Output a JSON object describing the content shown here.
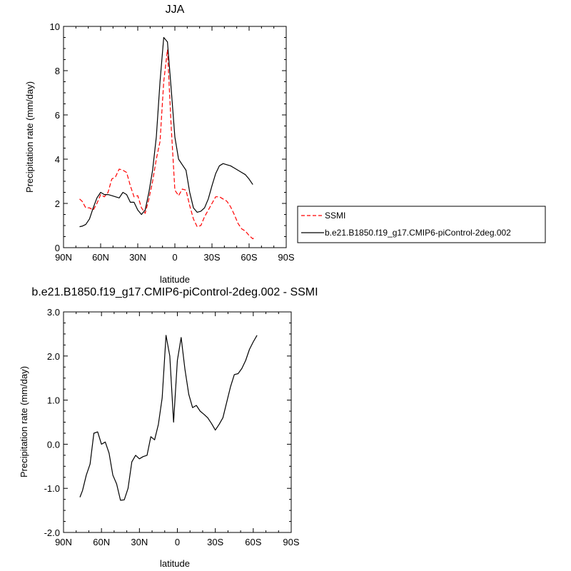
{
  "chart_data": [
    {
      "type": "line",
      "title": "JJA",
      "xlabel": "latitude",
      "ylabel": "Precipitation rate (mm/day)",
      "xlim": [
        90,
        -90
      ],
      "ylim": [
        0,
        10
      ],
      "x_ticks": [
        90,
        60,
        30,
        0,
        -30,
        -60,
        -90
      ],
      "x_tick_labels": [
        "90N",
        "60N",
        "30N",
        "0",
        "30S",
        "60S",
        "90S"
      ],
      "y_ticks": [
        0,
        2,
        4,
        6,
        8,
        10
      ],
      "y_tick_labels": [
        "0",
        "2",
        "4",
        "6",
        "8",
        "10"
      ],
      "legend_position": "right",
      "series": [
        {
          "name": "SSMI",
          "color": "#ff0000",
          "dash": "dashed",
          "x": [
            77,
            75,
            72,
            69,
            66,
            63,
            60,
            57,
            54,
            51,
            48,
            45,
            42,
            39,
            36,
            33,
            30,
            27,
            24,
            21,
            18,
            15,
            12,
            9,
            6,
            3,
            0,
            -3,
            -6,
            -9,
            -12,
            -15,
            -18,
            -21,
            -24,
            -27,
            -30,
            -33,
            -36,
            -39,
            -42,
            -45,
            -48,
            -51,
            -54,
            -57,
            -60,
            -63,
            -65
          ],
          "y": [
            2.2,
            2.1,
            1.8,
            1.8,
            1.7,
            2.0,
            2.4,
            2.3,
            2.5,
            3.1,
            3.2,
            3.55,
            3.5,
            3.4,
            2.8,
            2.3,
            2.35,
            1.8,
            1.55,
            2.2,
            3.0,
            4.0,
            4.8,
            7.5,
            8.95,
            5.5,
            2.6,
            2.35,
            2.65,
            2.6,
            1.9,
            1.3,
            0.95,
            1.0,
            1.4,
            1.7,
            2.0,
            2.3,
            2.3,
            2.2,
            2.1,
            1.85,
            1.5,
            1.1,
            0.85,
            0.75,
            0.55,
            0.4,
            0.5
          ]
        },
        {
          "name": "b.e21.B1850.f19_g17.CMIP6-piControl-2deg.002",
          "color": "#000000",
          "dash": "solid",
          "x": [
            77,
            75,
            72,
            69,
            66,
            63,
            60,
            57,
            54,
            51,
            48,
            45,
            42,
            39,
            36,
            33,
            30,
            27,
            24,
            21,
            18,
            15,
            12,
            9,
            6,
            3,
            0,
            -3,
            -6,
            -9,
            -12,
            -15,
            -18,
            -21,
            -24,
            -27,
            -30,
            -33,
            -36,
            -39,
            -42,
            -45,
            -48,
            -51,
            -54,
            -57,
            -60,
            -63
          ],
          "y": [
            0.95,
            0.97,
            1.05,
            1.3,
            1.8,
            2.25,
            2.5,
            2.4,
            2.4,
            2.35,
            2.3,
            2.25,
            2.5,
            2.4,
            2.05,
            2.05,
            1.7,
            1.5,
            1.7,
            2.5,
            3.5,
            5.0,
            7.5,
            9.5,
            9.3,
            7.2,
            5.0,
            4.0,
            3.75,
            3.5,
            2.5,
            1.8,
            1.6,
            1.65,
            1.8,
            2.2,
            2.8,
            3.35,
            3.7,
            3.8,
            3.75,
            3.7,
            3.6,
            3.5,
            3.4,
            3.3,
            3.1,
            2.85
          ]
        }
      ]
    },
    {
      "type": "line",
      "title": "b.e21.B1850.f19_g17.CMIP6-piControl-2deg.002 - SSMI",
      "xlabel": "latitude",
      "ylabel": "Precipitation rate (mm/day)",
      "xlim": [
        90,
        -90
      ],
      "ylim": [
        -2.0,
        3.0
      ],
      "x_ticks": [
        90,
        60,
        30,
        0,
        -30,
        -60,
        -90
      ],
      "x_tick_labels": [
        "90N",
        "60N",
        "30N",
        "0",
        "30S",
        "60S",
        "90S"
      ],
      "y_ticks": [
        -2,
        -1,
        0,
        1,
        2,
        3
      ],
      "y_tick_labels": [
        "-2.0",
        "-1.0",
        "0.0",
        "1.0",
        "2.0",
        "3.0"
      ],
      "series": [
        {
          "color": "#000000",
          "dash": "solid",
          "x": [
            77,
            75,
            72,
            69,
            66,
            63,
            60,
            57,
            54,
            51,
            48,
            45,
            42,
            39,
            36,
            33,
            30,
            27,
            24,
            21,
            18,
            15,
            12,
            9,
            6,
            3,
            0,
            -3,
            -6,
            -9,
            -12,
            -15,
            -18,
            -21,
            -24,
            -27,
            -30,
            -33,
            -36,
            -39,
            -42,
            -45,
            -48,
            -51,
            -54,
            -57,
            -60,
            -63
          ],
          "y": [
            -1.2,
            -1.05,
            -0.7,
            -0.45,
            0.25,
            0.28,
            0.0,
            0.05,
            -0.2,
            -0.7,
            -0.9,
            -1.27,
            -1.26,
            -1.0,
            -0.4,
            -0.25,
            -0.33,
            -0.28,
            -0.25,
            0.17,
            0.1,
            0.45,
            1.05,
            2.47,
            2.0,
            0.5,
            1.9,
            2.42,
            1.7,
            1.13,
            0.83,
            0.88,
            0.75,
            0.68,
            0.6,
            0.47,
            0.32,
            0.45,
            0.6,
            0.95,
            1.3,
            1.58,
            1.6,
            1.72,
            1.9,
            2.15,
            2.32,
            2.47
          ]
        }
      ]
    }
  ]
}
